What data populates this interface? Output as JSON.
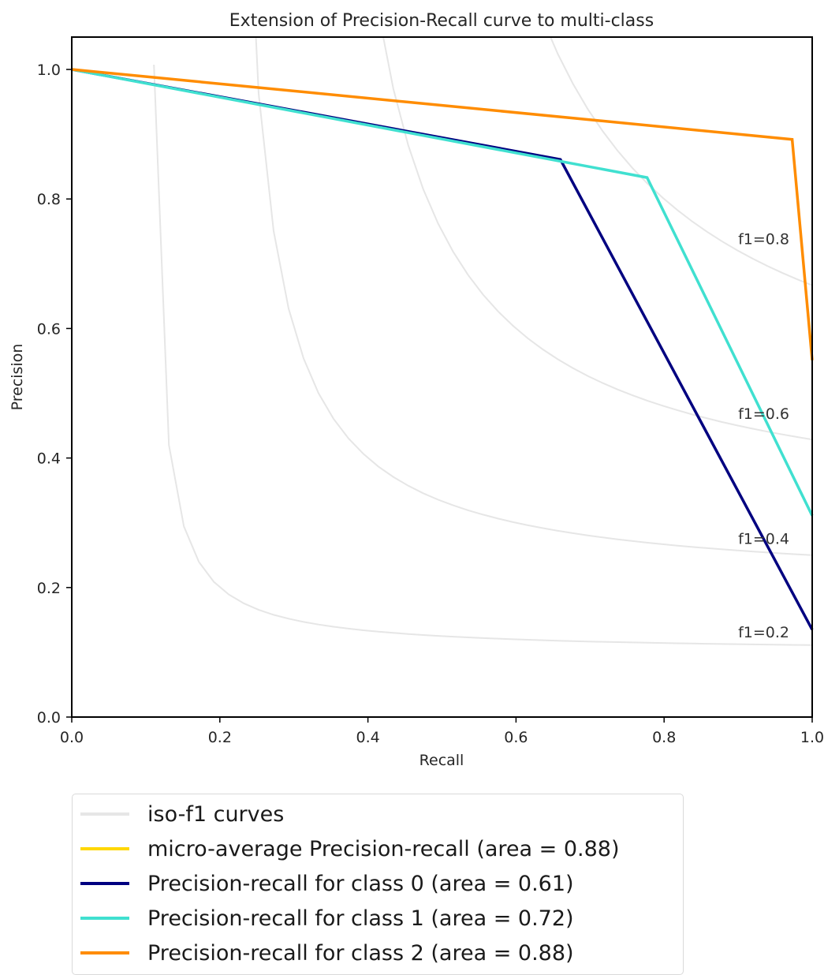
{
  "chart_data": {
    "type": "line",
    "title": "Extension of Precision-Recall curve to multi-class",
    "xlabel": "Recall",
    "ylabel": "Precision",
    "xlim": [
      0.0,
      1.0
    ],
    "ylim": [
      0.0,
      1.05
    ],
    "xticks": [
      "0.0",
      "0.2",
      "0.4",
      "0.6",
      "0.8",
      "1.0"
    ],
    "yticks": [
      "0.0",
      "0.2",
      "0.4",
      "0.6",
      "0.8",
      "1.0"
    ],
    "grid": false,
    "legend_position": "below-left",
    "iso_f1": {
      "label": "iso-f1 curves",
      "color": "#e6e6e6",
      "values": [
        0.2,
        0.4,
        0.6,
        0.8
      ],
      "annotations": [
        "f1=0.2",
        "f1=0.4",
        "f1=0.6",
        "f1=0.8"
      ]
    },
    "series": [
      {
        "name": "micro-average Precision-recall (area = 0.88)",
        "color": "#ffd700",
        "recall": [],
        "precision": []
      },
      {
        "name": "Precision-recall for class 0 (area = 0.61)",
        "color": "#000080",
        "recall": [
          0.0,
          0.66,
          1.0
        ],
        "precision": [
          1.0,
          0.861,
          0.135
        ]
      },
      {
        "name": "Precision-recall for class 1 (area = 0.72)",
        "color": "#40e0d0",
        "recall": [
          0.0,
          0.777,
          1.0
        ],
        "precision": [
          1.0,
          0.833,
          0.311
        ]
      },
      {
        "name": "Precision-recall for class 2 (area = 0.88)",
        "color": "#ff8c00",
        "recall": [
          0.0,
          0.973,
          1.0
        ],
        "precision": [
          1.0,
          0.892,
          0.551
        ]
      }
    ]
  }
}
